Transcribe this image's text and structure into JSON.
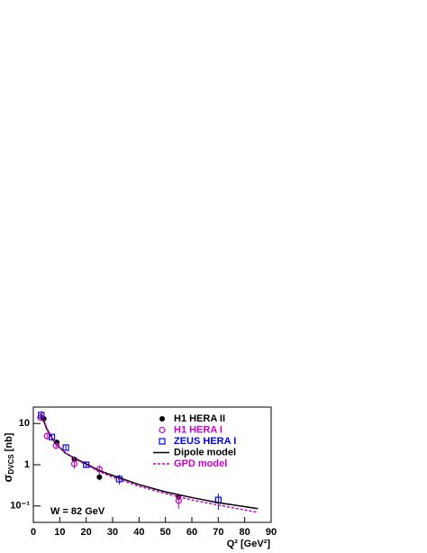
{
  "chart_data": {
    "type": "scatter",
    "y_label": {
      "symbol": "σ",
      "sub": "DVCS",
      "unit": "[nb]"
    },
    "x_label": "Q² [GeV²]",
    "annotation": "W = 82 GeV",
    "log_y": true,
    "xlim": [
      0,
      90
    ],
    "xticks": [
      0,
      10,
      20,
      30,
      40,
      50,
      60,
      70,
      80,
      90
    ],
    "ylim": [
      0.04,
      25
    ],
    "yticks": [
      {
        "value": 0.1,
        "label": "10⁻¹"
      },
      1,
      10
    ],
    "legend": "top-right",
    "series": [
      {
        "name": "H1 HERA II",
        "color": "#000000",
        "marker": "filled-circle",
        "x": [
          4,
          8.9,
          15.5,
          25,
          55
        ],
        "values": [
          13,
          3.5,
          1.35,
          0.5,
          0.165
        ],
        "errors": [
          2,
          0.4,
          0.2,
          0.08,
          0.03
        ]
      },
      {
        "name": "H1 HERA I",
        "color": "#cc00cc",
        "marker": "open-circle",
        "x": [
          2.7,
          5.2,
          8.6,
          15.5,
          25,
          55
        ],
        "values": [
          14,
          5,
          2.9,
          1.05,
          0.78,
          0.135
        ],
        "errors": [
          2.5,
          1,
          0.5,
          0.25,
          0.2,
          0.05
        ]
      },
      {
        "name": "ZEUS HERA I",
        "color": "#0000ee",
        "marker": "open-square",
        "x": [
          3,
          7,
          12.3,
          20,
          32.5,
          70
        ],
        "values": [
          16,
          4.7,
          2.6,
          1.0,
          0.45,
          0.14
        ],
        "errors": [
          3,
          0.6,
          0.3,
          0.15,
          0.12,
          0.06
        ]
      },
      {
        "name": "Dipole model",
        "color": "#000000",
        "marker": "solid",
        "x": [
          3,
          5,
          8,
          12,
          16,
          20,
          25,
          30,
          40,
          50,
          60,
          70,
          85
        ],
        "values": [
          17,
          7.5,
          3.5,
          1.95,
          1.4,
          1.05,
          0.72,
          0.55,
          0.33,
          0.22,
          0.16,
          0.12,
          0.086
        ]
      },
      {
        "name": "GPD model",
        "color": "#cc00cc",
        "marker": "dashed",
        "x": [
          3,
          5,
          8,
          12,
          16,
          20,
          25,
          30,
          40,
          50,
          60,
          70,
          85
        ],
        "values": [
          20,
          8,
          3.5,
          1.95,
          1.35,
          1.0,
          0.68,
          0.5,
          0.3,
          0.2,
          0.14,
          0.105,
          0.07
        ]
      }
    ]
  }
}
